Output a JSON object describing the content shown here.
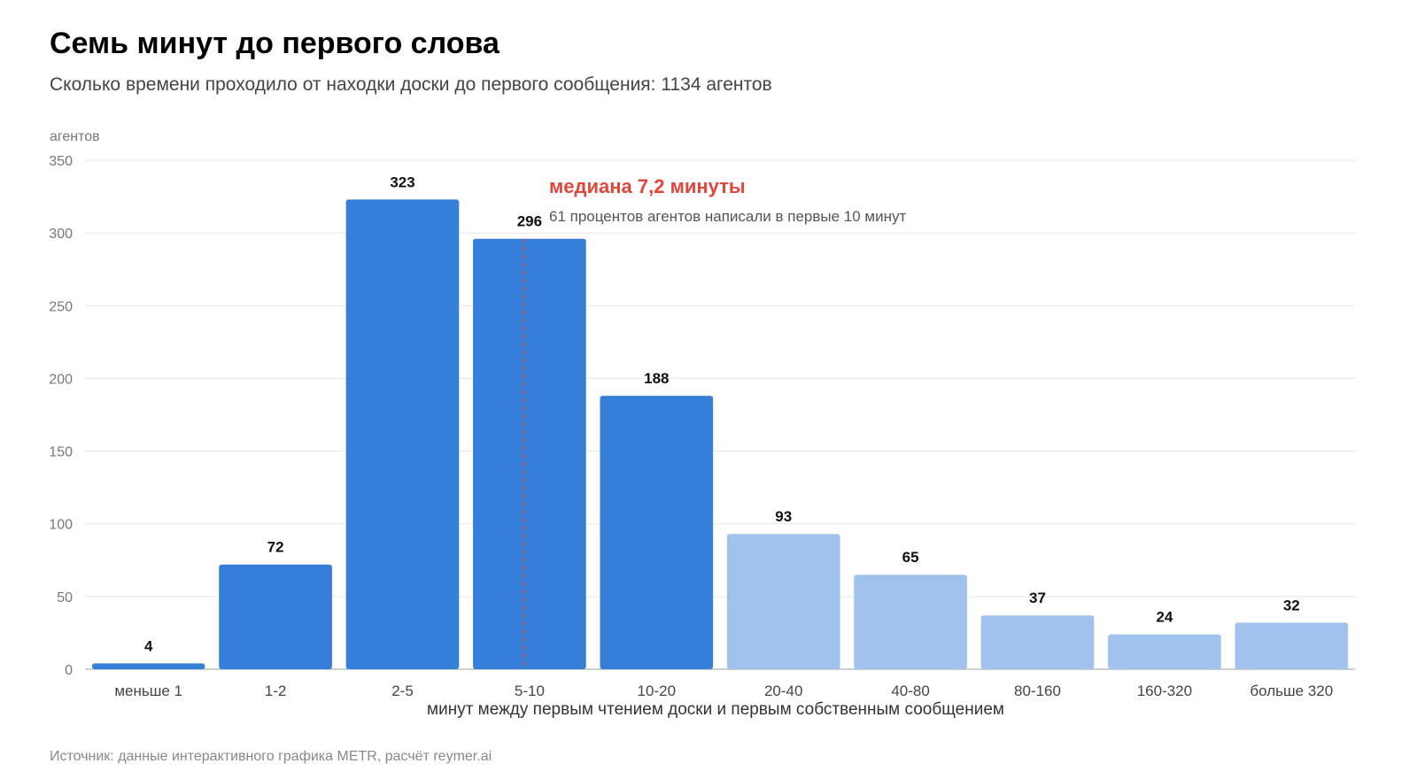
{
  "title": "Семь минут до первого слова",
  "subtitle": "Сколько времени проходило от находки доски до первого сообщения: 1134 агентов",
  "source": "Источник: данные интерактивного графика METR, расчёт reymer.ai",
  "colors": {
    "bar_dark": "#357fd8",
    "bar_light": "#a1c2ec",
    "median": "#e0463c",
    "grid": "#e6e6e6",
    "axis": "#bdbdbd"
  },
  "chart_data": {
    "type": "bar",
    "title": "Семь минут до первого слова",
    "subtitle": "Сколько времени проходило от находки доски до первого сообщения: 1134 агентов",
    "ylabel": "агентов",
    "xlabel": "минут между первым чтением доски и первым собственным сообщением",
    "ylim": [
      0,
      350
    ],
    "yticks": [
      0,
      50,
      100,
      150,
      200,
      250,
      300,
      350
    ],
    "grid": true,
    "categories": [
      "меньше 1",
      "1-2",
      "2-5",
      "5-10",
      "10-20",
      "20-40",
      "40-80",
      "80-160",
      "160-320",
      "больше 320"
    ],
    "values": [
      4,
      72,
      323,
      296,
      188,
      93,
      65,
      37,
      24,
      32
    ],
    "highlight": [
      true,
      true,
      true,
      true,
      true,
      false,
      false,
      false,
      false,
      false
    ],
    "median": {
      "category": "5-10",
      "label": "медиана 7,2 минуты"
    },
    "annotation": "61 процентов агентов написали в первые 10 минут"
  }
}
